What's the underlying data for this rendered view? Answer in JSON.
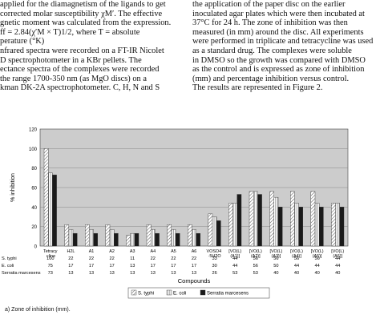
{
  "text": {
    "left_lines": [
      "applied for the diamagnetism of the ligands to get",
      "corrected molar susceptibility χM′. The effective",
      "gnetic moment was calculated from the expression.",
      "ff = 2.84(χ′M × T)1/2,       where     T = absolute",
      "perature (°K)",
      "nfrared spectra were recorded on a FT-IR Nicolet",
      "D spectrophotometer in a KBr pellets. The",
      "ectance spectra of the complexes were recorded",
      "the range 1700-350 nm (as MgO discs) on a",
      "kman DK-2A spectrophotometer. C, H, N and S"
    ],
    "right_lines": [
      "the application of the paper disc on the earlier",
      "inoculated agar plates which were then incubated at",
      "37°C for 24 h. The zone of inhibition was then",
      "measured (in mm) around the disc. All experiments",
      "were performed in triplicate and tetracycline was used",
      "as a standard drug. The complexes were soluble",
      "in DMSO so the growth was compared with DMSO",
      "as the control and is expressed as zone of inhibition",
      "(mm) and percentage inhibition versus control.",
      "The results are represented in Figure 2."
    ]
  },
  "caption": "a) Zone of inhibition (mm).",
  "colors": {
    "s_typhi": "#ffffff",
    "e_coli": "#ffffff",
    "serratia": "#1a1a1a",
    "plot_bg": "#cccccc"
  },
  "chart_data": {
    "type": "bar",
    "title": "",
    "xlabel": "Compounds",
    "ylabel": "% inhibition",
    "ylim": [
      0,
      120
    ],
    "yticks": [
      0,
      20,
      40,
      60,
      80,
      100,
      120
    ],
    "grid": true,
    "legend_position": "bottom",
    "categories": [
      "Tetracy cline",
      "H2L",
      "A1",
      "A2",
      "A3",
      "A4",
      "A5",
      "A6",
      "VOSO4 ·5H2O",
      "[VO(L)(A1)]",
      "[VO(L)(A2)]",
      "[VO(L)(A3)]",
      "[VO(L)(A4)]",
      "[VO(L)(A5)]",
      "[VO(L)(A6)]"
    ],
    "table_labels": [
      "S. typhi",
      "E. coli",
      "Serratia marcesens"
    ],
    "table_values": [
      [
        "100",
        "22",
        "22",
        "22",
        "11",
        "22",
        "22",
        "22",
        "33",
        "44",
        "56",
        "56",
        "56",
        "56",
        "44"
      ],
      [
        "75",
        "17",
        "17",
        "17",
        "13",
        "17",
        "17",
        "17",
        "30",
        "44",
        "56",
        "50",
        "44",
        "44",
        "44"
      ],
      [
        "73",
        "13",
        "13",
        "13",
        "13",
        "13",
        "13",
        "13",
        "26",
        "53",
        "53",
        "40",
        "40",
        "40",
        "40"
      ]
    ],
    "series": [
      {
        "name": "S. typhi",
        "values": [
          100,
          22,
          22,
          22,
          11,
          22,
          22,
          22,
          33,
          44,
          56,
          56,
          56,
          56,
          44
        ]
      },
      {
        "name": "E. coli",
        "values": [
          75,
          17,
          17,
          17,
          13,
          17,
          17,
          17,
          30,
          44,
          56,
          50,
          44,
          44,
          44
        ]
      },
      {
        "name": "Serratia marcesens",
        "values": [
          73,
          13,
          13,
          13,
          13,
          13,
          13,
          13,
          26,
          53,
          53,
          40,
          40,
          40,
          40
        ]
      }
    ]
  }
}
